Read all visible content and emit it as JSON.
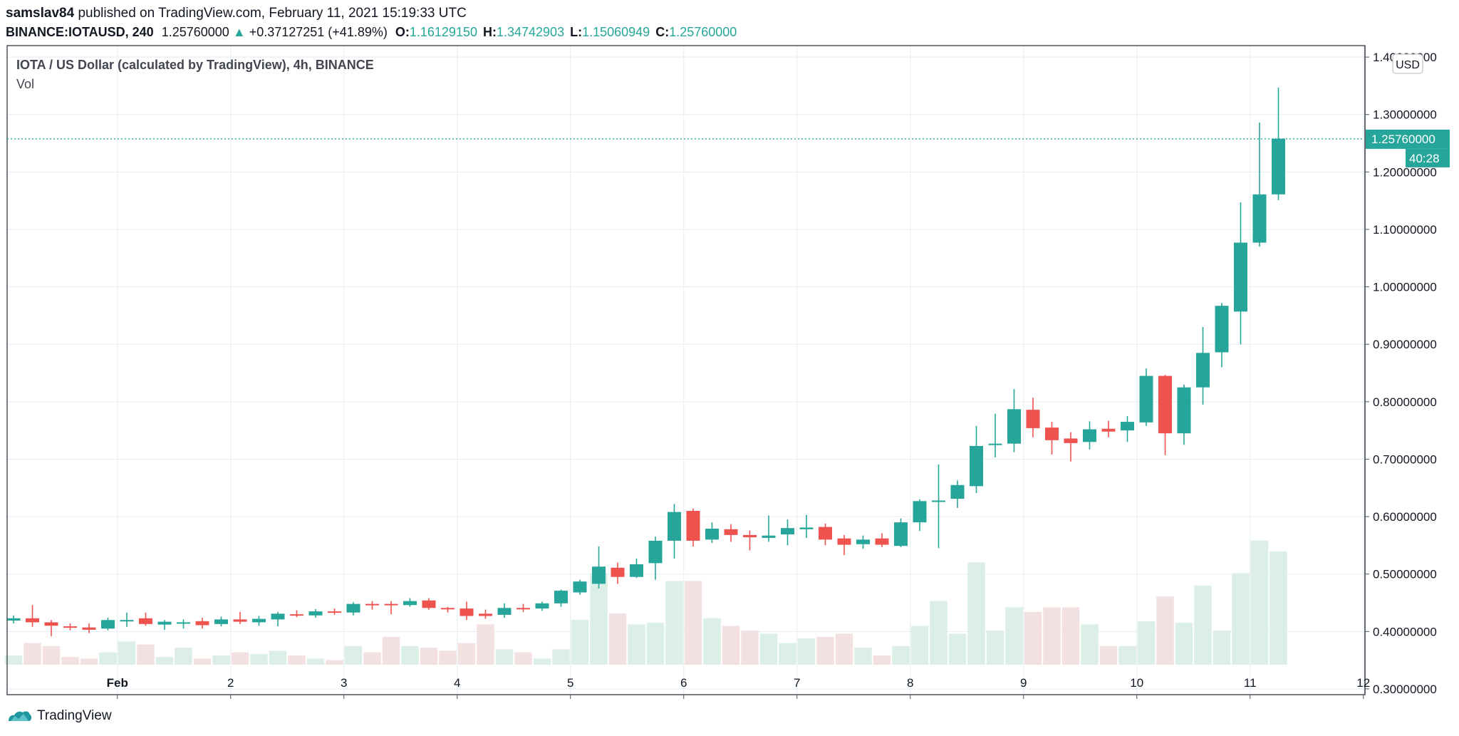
{
  "header": {
    "author": "samslav84",
    "published_text": "published on TradingView.com, February 11, 2021 15:19:33 UTC",
    "symbol": "BINANCE:IOTAUSD, 240",
    "last": "1.25760000",
    "change_arrow": "▲",
    "change": "+0.37127251 (+41.89%)",
    "o_label": "O:",
    "o_value": "1.16129150",
    "h_label": "H:",
    "h_value": "1.34742903",
    "l_label": "L:",
    "l_value": "1.15060949",
    "c_label": "C:",
    "c_value": "1.25760000"
  },
  "legend": {
    "title": "IOTA / US Dollar (calculated by TradingView), 4h, BINANCE",
    "vol": "Vol"
  },
  "currency_button": "USD",
  "last_price_label": "1.25760000",
  "countdown_label": "40:28",
  "footer": {
    "brand": "TradingView"
  },
  "colors": {
    "up": "#26a69a",
    "down": "#ef5350",
    "vol_up": "#dcefe6",
    "vol_down": "#f3e1e1",
    "grid": "#e3eef2",
    "text": "#131722"
  },
  "chart_data": {
    "type": "candlestick",
    "y_range": [
      0.29,
      1.42
    ],
    "y_ticks": [
      "1.40000000",
      "1.30000000",
      "1.20000000",
      "1.10000000",
      "1.00000000",
      "0.90000000",
      "0.80000000",
      "0.70000000",
      "0.60000000",
      "0.50000000",
      "0.40000000",
      "0.30000000"
    ],
    "x_ticks": [
      {
        "label": "Feb",
        "bar": 5.5
      },
      {
        "label": "2",
        "bar": 11.5
      },
      {
        "label": "3",
        "bar": 17.5
      },
      {
        "label": "4",
        "bar": 23.5
      },
      {
        "label": "5",
        "bar": 29.5
      },
      {
        "label": "6",
        "bar": 35.5
      },
      {
        "label": "7",
        "bar": 41.5
      },
      {
        "label": "8",
        "bar": 47.5
      },
      {
        "label": "9",
        "bar": 53.5
      },
      {
        "label": "10",
        "bar": 59.5
      },
      {
        "label": "11",
        "bar": 65.5
      },
      {
        "label": "12",
        "bar": 71.5
      }
    ],
    "volume_max": 1.0,
    "candles": [
      {
        "o": 0.419,
        "h": 0.428,
        "l": 0.414,
        "c": 0.423,
        "v": 0.06
      },
      {
        "o": 0.423,
        "h": 0.446,
        "l": 0.408,
        "c": 0.416,
        "v": 0.14
      },
      {
        "o": 0.416,
        "h": 0.42,
        "l": 0.392,
        "c": 0.41,
        "v": 0.12
      },
      {
        "o": 0.409,
        "h": 0.414,
        "l": 0.402,
        "c": 0.407,
        "v": 0.05
      },
      {
        "o": 0.407,
        "h": 0.414,
        "l": 0.397,
        "c": 0.403,
        "v": 0.04
      },
      {
        "o": 0.405,
        "h": 0.424,
        "l": 0.402,
        "c": 0.42,
        "v": 0.08
      },
      {
        "o": 0.419,
        "h": 0.433,
        "l": 0.408,
        "c": 0.42,
        "v": 0.15
      },
      {
        "o": 0.423,
        "h": 0.433,
        "l": 0.41,
        "c": 0.413,
        "v": 0.13
      },
      {
        "o": 0.412,
        "h": 0.42,
        "l": 0.403,
        "c": 0.417,
        "v": 0.05
      },
      {
        "o": 0.416,
        "h": 0.421,
        "l": 0.405,
        "c": 0.416,
        "v": 0.11
      },
      {
        "o": 0.418,
        "h": 0.424,
        "l": 0.405,
        "c": 0.411,
        "v": 0.04
      },
      {
        "o": 0.413,
        "h": 0.426,
        "l": 0.409,
        "c": 0.421,
        "v": 0.06
      },
      {
        "o": 0.421,
        "h": 0.434,
        "l": 0.413,
        "c": 0.417,
        "v": 0.08
      },
      {
        "o": 0.416,
        "h": 0.427,
        "l": 0.41,
        "c": 0.422,
        "v": 0.07
      },
      {
        "o": 0.421,
        "h": 0.434,
        "l": 0.409,
        "c": 0.431,
        "v": 0.09
      },
      {
        "o": 0.43,
        "h": 0.437,
        "l": 0.425,
        "c": 0.428,
        "v": 0.06
      },
      {
        "o": 0.428,
        "h": 0.439,
        "l": 0.424,
        "c": 0.435,
        "v": 0.04
      },
      {
        "o": 0.435,
        "h": 0.44,
        "l": 0.429,
        "c": 0.433,
        "v": 0.03
      },
      {
        "o": 0.433,
        "h": 0.451,
        "l": 0.428,
        "c": 0.448,
        "v": 0.12
      },
      {
        "o": 0.448,
        "h": 0.453,
        "l": 0.438,
        "c": 0.447,
        "v": 0.08
      },
      {
        "o": 0.448,
        "h": 0.453,
        "l": 0.43,
        "c": 0.446,
        "v": 0.18
      },
      {
        "o": 0.446,
        "h": 0.458,
        "l": 0.443,
        "c": 0.453,
        "v": 0.12
      },
      {
        "o": 0.454,
        "h": 0.458,
        "l": 0.438,
        "c": 0.441,
        "v": 0.11
      },
      {
        "o": 0.441,
        "h": 0.443,
        "l": 0.433,
        "c": 0.439,
        "v": 0.09
      },
      {
        "o": 0.44,
        "h": 0.452,
        "l": 0.42,
        "c": 0.427,
        "v": 0.14
      },
      {
        "o": 0.431,
        "h": 0.438,
        "l": 0.422,
        "c": 0.427,
        "v": 0.26
      },
      {
        "o": 0.429,
        "h": 0.449,
        "l": 0.424,
        "c": 0.441,
        "v": 0.1
      },
      {
        "o": 0.441,
        "h": 0.448,
        "l": 0.434,
        "c": 0.44,
        "v": 0.08
      },
      {
        "o": 0.44,
        "h": 0.452,
        "l": 0.436,
        "c": 0.449,
        "v": 0.04
      },
      {
        "o": 0.449,
        "h": 0.473,
        "l": 0.443,
        "c": 0.471,
        "v": 0.1
      },
      {
        "o": 0.468,
        "h": 0.49,
        "l": 0.464,
        "c": 0.487,
        "v": 0.29
      },
      {
        "o": 0.483,
        "h": 0.548,
        "l": 0.475,
        "c": 0.513,
        "v": 0.59
      },
      {
        "o": 0.511,
        "h": 0.52,
        "l": 0.483,
        "c": 0.495,
        "v": 0.33
      },
      {
        "o": 0.495,
        "h": 0.527,
        "l": 0.493,
        "c": 0.517,
        "v": 0.26
      },
      {
        "o": 0.519,
        "h": 0.565,
        "l": 0.49,
        "c": 0.558,
        "v": 0.27
      },
      {
        "o": 0.558,
        "h": 0.622,
        "l": 0.527,
        "c": 0.608,
        "v": 0.54
      },
      {
        "o": 0.61,
        "h": 0.614,
        "l": 0.548,
        "c": 0.558,
        "v": 0.54
      },
      {
        "o": 0.56,
        "h": 0.59,
        "l": 0.554,
        "c": 0.579,
        "v": 0.3
      },
      {
        "o": 0.578,
        "h": 0.587,
        "l": 0.556,
        "c": 0.568,
        "v": 0.25
      },
      {
        "o": 0.568,
        "h": 0.576,
        "l": 0.541,
        "c": 0.564,
        "v": 0.22
      },
      {
        "o": 0.563,
        "h": 0.602,
        "l": 0.556,
        "c": 0.567,
        "v": 0.2
      },
      {
        "o": 0.569,
        "h": 0.595,
        "l": 0.55,
        "c": 0.58,
        "v": 0.14
      },
      {
        "o": 0.578,
        "h": 0.603,
        "l": 0.563,
        "c": 0.581,
        "v": 0.17
      },
      {
        "o": 0.582,
        "h": 0.588,
        "l": 0.55,
        "c": 0.56,
        "v": 0.18
      },
      {
        "o": 0.562,
        "h": 0.568,
        "l": 0.533,
        "c": 0.551,
        "v": 0.2
      },
      {
        "o": 0.552,
        "h": 0.567,
        "l": 0.544,
        "c": 0.56,
        "v": 0.11
      },
      {
        "o": 0.562,
        "h": 0.571,
        "l": 0.547,
        "c": 0.551,
        "v": 0.06
      },
      {
        "o": 0.549,
        "h": 0.597,
        "l": 0.547,
        "c": 0.59,
        "v": 0.12
      },
      {
        "o": 0.59,
        "h": 0.63,
        "l": 0.575,
        "c": 0.627,
        "v": 0.25
      },
      {
        "o": 0.627,
        "h": 0.691,
        "l": 0.545,
        "c": 0.628,
        "v": 0.41
      },
      {
        "o": 0.631,
        "h": 0.663,
        "l": 0.615,
        "c": 0.655,
        "v": 0.2
      },
      {
        "o": 0.653,
        "h": 0.758,
        "l": 0.641,
        "c": 0.723,
        "v": 0.66
      },
      {
        "o": 0.725,
        "h": 0.779,
        "l": 0.703,
        "c": 0.727,
        "v": 0.22
      },
      {
        "o": 0.727,
        "h": 0.822,
        "l": 0.712,
        "c": 0.787,
        "v": 0.37
      },
      {
        "o": 0.786,
        "h": 0.807,
        "l": 0.738,
        "c": 0.754,
        "v": 0.34
      },
      {
        "o": 0.755,
        "h": 0.765,
        "l": 0.708,
        "c": 0.733,
        "v": 0.37
      },
      {
        "o": 0.736,
        "h": 0.747,
        "l": 0.696,
        "c": 0.728,
        "v": 0.37
      },
      {
        "o": 0.73,
        "h": 0.766,
        "l": 0.717,
        "c": 0.752,
        "v": 0.26
      },
      {
        "o": 0.753,
        "h": 0.767,
        "l": 0.738,
        "c": 0.748,
        "v": 0.12
      },
      {
        "o": 0.75,
        "h": 0.775,
        "l": 0.73,
        "c": 0.765,
        "v": 0.12
      },
      {
        "o": 0.764,
        "h": 0.858,
        "l": 0.758,
        "c": 0.845,
        "v": 0.28
      },
      {
        "o": 0.845,
        "h": 0.847,
        "l": 0.707,
        "c": 0.745,
        "v": 0.44
      },
      {
        "o": 0.745,
        "h": 0.83,
        "l": 0.725,
        "c": 0.825,
        "v": 0.27
      },
      {
        "o": 0.825,
        "h": 0.93,
        "l": 0.795,
        "c": 0.885,
        "v": 0.51
      },
      {
        "o": 0.886,
        "h": 0.972,
        "l": 0.86,
        "c": 0.967,
        "v": 0.22
      },
      {
        "o": 0.957,
        "h": 1.147,
        "l": 0.9,
        "c": 1.077,
        "v": 0.59
      },
      {
        "o": 1.077,
        "h": 1.286,
        "l": 1.07,
        "c": 1.161,
        "v": 0.8
      },
      {
        "o": 1.161,
        "h": 1.347,
        "l": 1.151,
        "c": 1.258,
        "v": 0.73
      }
    ]
  }
}
